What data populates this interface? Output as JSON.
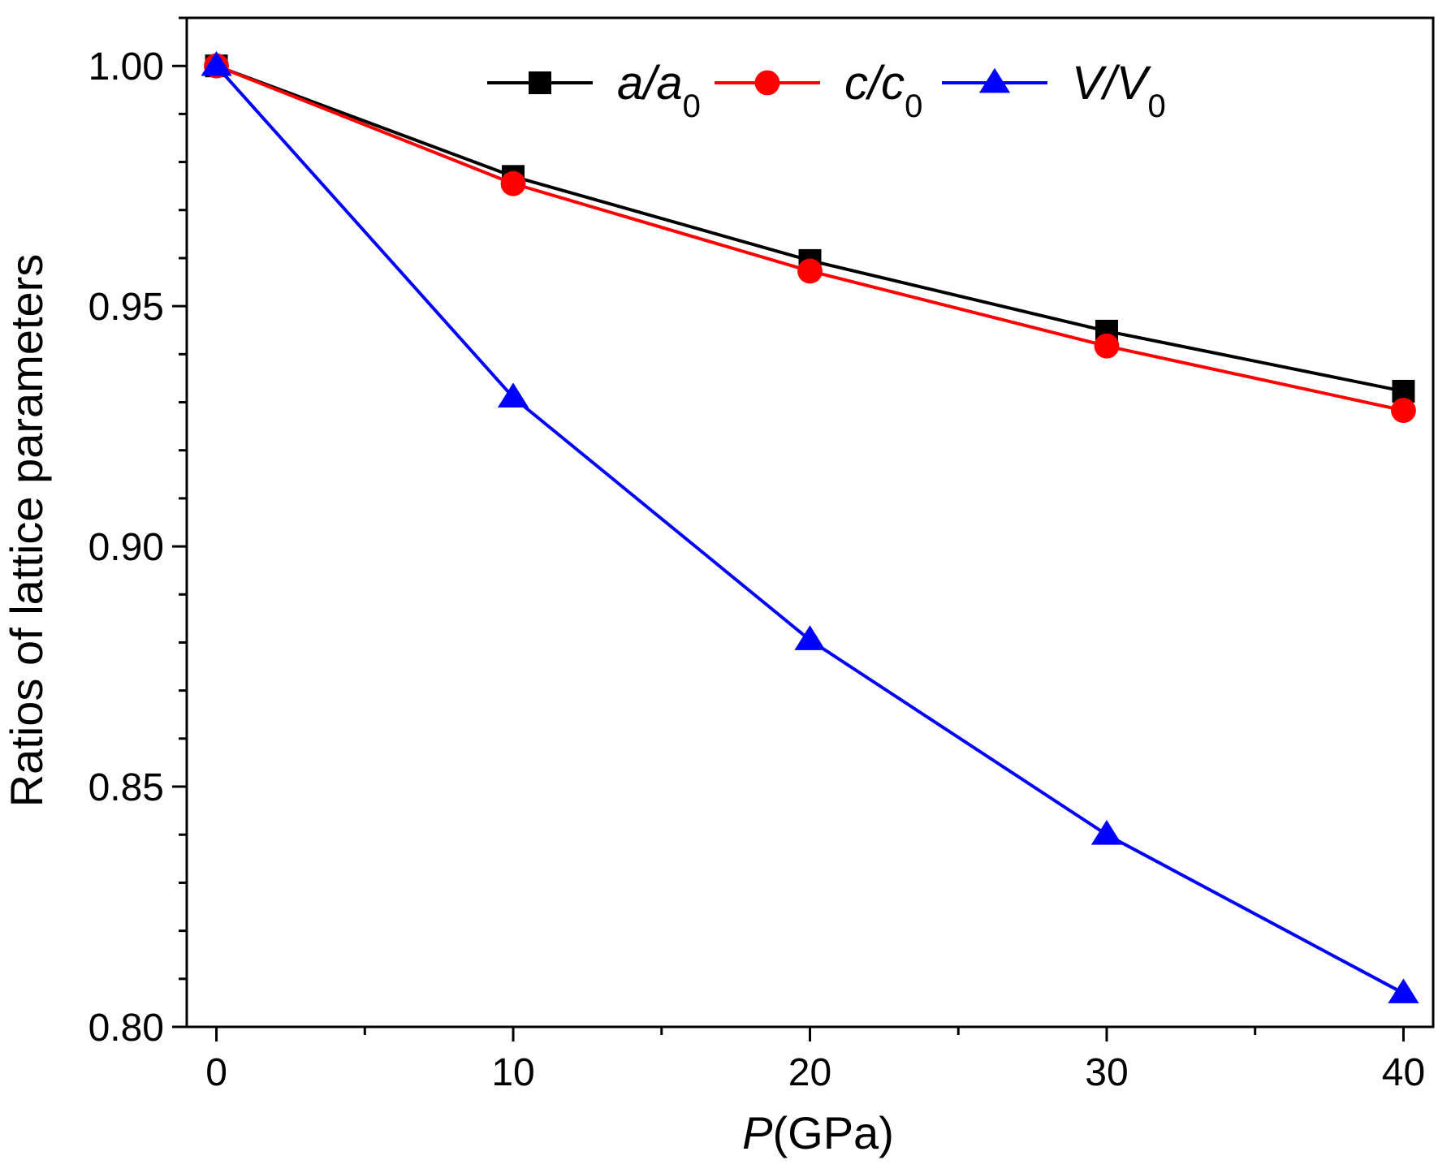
{
  "chart_data": {
    "type": "line",
    "title": "",
    "xlabel": {
      "var": "P",
      "unit": "(GPa)"
    },
    "ylabel": "Ratios of  lattice parameters",
    "xlim": [
      -1,
      41
    ],
    "ylim": [
      0.8,
      1.01
    ],
    "xticks": [
      0,
      10,
      20,
      30,
      40
    ],
    "xtick_labels": [
      "0",
      "10",
      "20",
      "30",
      "40"
    ],
    "yticks": [
      0.8,
      0.85,
      0.9,
      0.95,
      1.0
    ],
    "ytick_labels": [
      "0.80",
      "0.85",
      "0.90",
      "0.95",
      "1.00"
    ],
    "y_minor_step": 0.01,
    "x_minor_step": 5,
    "grid": false,
    "legend_position": "top-center",
    "x": [
      0,
      10,
      20,
      30,
      40
    ],
    "series": [
      {
        "name": "a/a0",
        "label_main": "a/a",
        "label_sub": "0",
        "color": "#000000",
        "marker": "square",
        "values": [
          1.0,
          0.977,
          0.9595,
          0.9448,
          0.9323
        ]
      },
      {
        "name": "c/c0",
        "label_main": "c/c",
        "label_sub": "0",
        "color": "#ff0000",
        "marker": "circle",
        "values": [
          1.0,
          0.9755,
          0.9573,
          0.9417,
          0.9283
        ]
      },
      {
        "name": "V/V0",
        "label_main": "V/V",
        "label_sub": "0",
        "color": "#0000ff",
        "marker": "triangle",
        "values": [
          1.0,
          0.931,
          0.8805,
          0.84,
          0.807
        ]
      }
    ]
  }
}
